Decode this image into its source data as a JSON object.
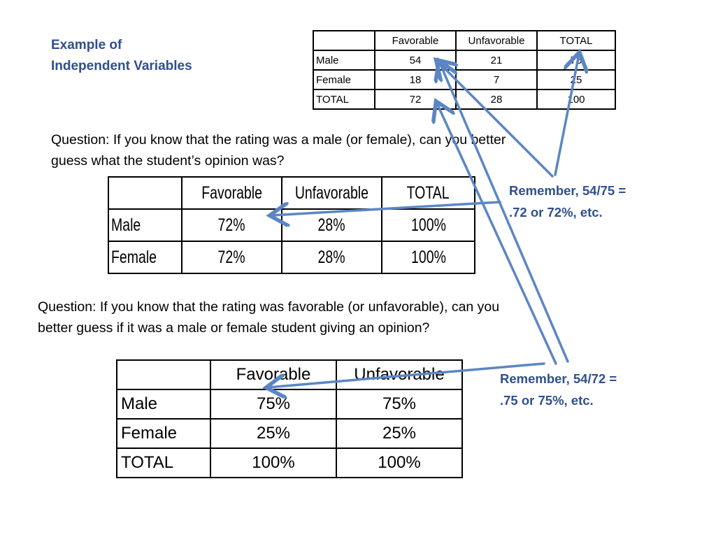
{
  "title": {
    "line1": "Example of",
    "line2": "Independent Variables"
  },
  "counts_table": {
    "headers": [
      "",
      "Favorable",
      "Unfavorable",
      "TOTAL"
    ],
    "rows": [
      [
        "Male",
        "54",
        "21",
        "75"
      ],
      [
        "Female",
        "18",
        "7",
        "25"
      ],
      [
        "TOTAL",
        "72",
        "28",
        "100"
      ]
    ]
  },
  "question1": {
    "line1": "Question: If you know that the rating was a male (or female), can you better",
    "line2": "guess what the student’s opinion was?"
  },
  "row_pct_table": {
    "headers": [
      "",
      "Favorable",
      "Unfavorable",
      "TOTAL"
    ],
    "rows": [
      [
        "Male",
        "72%",
        "28%",
        "100%"
      ],
      [
        "Female",
        "72%",
        "28%",
        "100%"
      ]
    ]
  },
  "note1": {
    "line1": "Remember, 54/75 =",
    "line2": ".72 or 72%, etc."
  },
  "question2": {
    "line1": "Question: If you know that the rating was favorable (or unfavorable), can you",
    "line2": "better guess if it was a male or female student giving an opinion?"
  },
  "col_pct_table": {
    "headers": [
      "",
      "Favorable",
      "Unfavorable"
    ],
    "rows": [
      [
        "Male",
        "75%",
        "75%"
      ],
      [
        "Female",
        "25%",
        "25%"
      ],
      [
        "TOTAL",
        "100%",
        "100%"
      ]
    ]
  },
  "note2": {
    "line1": "Remember, 54/72 =",
    "line2": ".75 or 75%, etc."
  },
  "colors": {
    "accent_text": "#2f4f8f",
    "arrow": "#5b86c5"
  }
}
